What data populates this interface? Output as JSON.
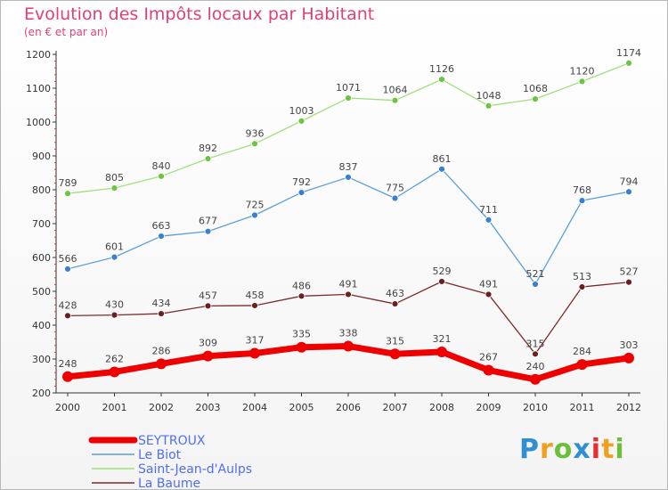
{
  "chart_data": {
    "type": "line",
    "title": "Evolution des Impôts locaux par Habitant",
    "subtitle": "(en € et par an)",
    "xlabel": "",
    "ylabel": "",
    "ylim": [
      200,
      1200
    ],
    "yticks": [
      200,
      300,
      400,
      500,
      600,
      700,
      800,
      900,
      1000,
      1100,
      1200
    ],
    "categories": [
      "2000",
      "2001",
      "2002",
      "2003",
      "2004",
      "2005",
      "2006",
      "2007",
      "2008",
      "2009",
      "2010",
      "2011",
      "2012"
    ],
    "grid": false,
    "legend_position": "bottom-left",
    "series": [
      {
        "name": "SEYTROUX",
        "color": "#ee0000",
        "marker_color": "#ee0000",
        "emphasis": true,
        "values": [
          248,
          262,
          286,
          309,
          317,
          335,
          338,
          315,
          321,
          267,
          240,
          284,
          303
        ]
      },
      {
        "name": "Le Biot",
        "color": "#5a9fd8",
        "marker_color": "#3a7fd0",
        "emphasis": false,
        "values": [
          566,
          601,
          663,
          677,
          725,
          792,
          837,
          775,
          861,
          711,
          521,
          768,
          794
        ]
      },
      {
        "name": "Saint-Jean-d'Aulps",
        "color": "#9fe07a",
        "marker_color": "#6cc440",
        "emphasis": false,
        "values": [
          789,
          805,
          840,
          892,
          936,
          1003,
          1071,
          1064,
          1126,
          1048,
          1068,
          1120,
          1174
        ]
      },
      {
        "name": "La Baume",
        "color": "#7a2c2c",
        "marker_color": "#6b2020",
        "emphasis": false,
        "values": [
          428,
          430,
          434,
          457,
          458,
          486,
          491,
          463,
          529,
          491,
          315,
          513,
          527
        ]
      }
    ]
  },
  "brand": {
    "letters": [
      {
        "char": "P",
        "color": "#2f8fd0"
      },
      {
        "char": "r",
        "color": "#f0a020"
      },
      {
        "char": "o",
        "color": "#6cbf3a"
      },
      {
        "char": "x",
        "color": "#2f8fd0"
      },
      {
        "char": "i",
        "color": "#e03030"
      },
      {
        "char": "t",
        "color": "#f0a020"
      },
      {
        "char": "i",
        "color": "#6cbf3a"
      }
    ]
  },
  "colors": {
    "title": "#e0407a",
    "axis": "#333333",
    "legend_text": "#4f6ef0"
  }
}
